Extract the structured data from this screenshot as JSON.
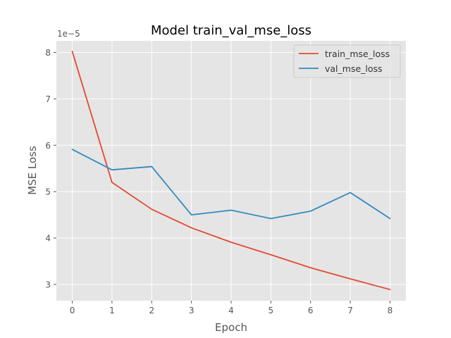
{
  "chart_data": {
    "type": "line",
    "title": "Model train_val_mse_loss",
    "xlabel": "Epoch",
    "ylabel": "MSE Loss",
    "offset_label": "1e−5",
    "x": [
      0,
      1,
      2,
      3,
      4,
      5,
      6,
      7,
      8
    ],
    "xticks": [
      "0",
      "1",
      "2",
      "3",
      "4",
      "5",
      "6",
      "7",
      "8"
    ],
    "yticks": [
      3,
      4,
      5,
      6,
      7,
      8
    ],
    "ytick_labels": [
      "3",
      "4",
      "5",
      "6",
      "7",
      "8"
    ],
    "xlim": [
      -0.4,
      8.4
    ],
    "ylim": [
      2.65,
      8.25
    ],
    "grid": true,
    "legend_position": "top-right",
    "series": [
      {
        "name": "train_mse_loss",
        "color": "#E24A33",
        "values": [
          8.02,
          5.2,
          4.62,
          4.22,
          3.91,
          3.64,
          3.36,
          3.12,
          2.89
        ]
      },
      {
        "name": "val_mse_loss",
        "color": "#348ABD",
        "values": [
          5.91,
          5.47,
          5.54,
          4.5,
          4.6,
          4.42,
          4.58,
          4.98,
          4.42
        ]
      }
    ]
  }
}
